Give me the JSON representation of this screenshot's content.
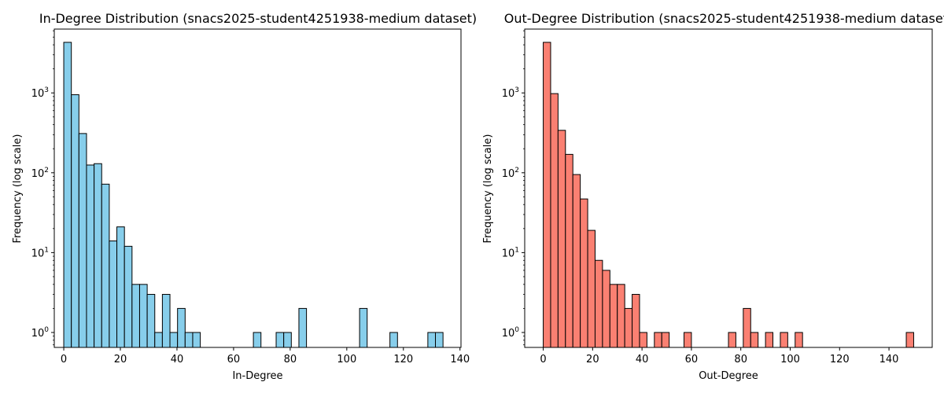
{
  "chart_data": [
    {
      "type": "bar",
      "title": "In-Degree Distribution (snacs2025-student4251938-medium dataset)",
      "xlabel": "In-Degree",
      "ylabel": "Frequency (log scale)",
      "yscale": "log",
      "xlim": [
        -3.35,
        140.35
      ],
      "ylim": [
        0.65,
        6300
      ],
      "xticks": [
        0,
        20,
        40,
        60,
        80,
        100,
        120,
        140
      ],
      "yticks": [
        1,
        10,
        100,
        1000
      ],
      "ytick_labels": [
        "10^0",
        "10^1",
        "10^2",
        "10^3"
      ],
      "bin_width": 2.68,
      "bin_start": 0,
      "color": "#87ceeb",
      "edge_color": "#000000",
      "grid": false,
      "bins": [
        {
          "x": 0.0,
          "count": 4300
        },
        {
          "x": 2.68,
          "count": 950
        },
        {
          "x": 5.36,
          "count": 310
        },
        {
          "x": 8.04,
          "count": 125
        },
        {
          "x": 10.72,
          "count": 130
        },
        {
          "x": 13.4,
          "count": 72
        },
        {
          "x": 16.08,
          "count": 14
        },
        {
          "x": 18.76,
          "count": 21
        },
        {
          "x": 21.44,
          "count": 12
        },
        {
          "x": 24.12,
          "count": 4
        },
        {
          "x": 26.8,
          "count": 4
        },
        {
          "x": 29.48,
          "count": 3
        },
        {
          "x": 32.16,
          "count": 1
        },
        {
          "x": 34.84,
          "count": 3
        },
        {
          "x": 37.52,
          "count": 1
        },
        {
          "x": 40.2,
          "count": 2
        },
        {
          "x": 42.88,
          "count": 1
        },
        {
          "x": 45.56,
          "count": 1
        },
        {
          "x": 67.0,
          "count": 1
        },
        {
          "x": 75.04,
          "count": 1
        },
        {
          "x": 77.72,
          "count": 1
        },
        {
          "x": 83.08,
          "count": 2
        },
        {
          "x": 104.52,
          "count": 2
        },
        {
          "x": 115.24,
          "count": 1
        },
        {
          "x": 128.64,
          "count": 1
        },
        {
          "x": 131.32,
          "count": 1
        }
      ]
    },
    {
      "type": "bar",
      "title": "Out-Degree Distribution (snacs2025-student4251938-medium dataset)",
      "xlabel": "Out-Degree",
      "ylabel": "Frequency (log scale)",
      "yscale": "log",
      "xlim": [
        -7.5,
        157.5
      ],
      "ylim": [
        0.65,
        6300
      ],
      "xticks": [
        0,
        20,
        40,
        60,
        80,
        100,
        120,
        140
      ],
      "yticks": [
        1,
        10,
        100,
        1000
      ],
      "ytick_labels": [
        "10^0",
        "10^1",
        "10^2",
        "10^3"
      ],
      "bin_width": 3.0,
      "bin_start": 0,
      "color": "#fa8072",
      "edge_color": "#000000",
      "grid": false,
      "bins": [
        {
          "x": 0,
          "count": 4300
        },
        {
          "x": 3,
          "count": 980
        },
        {
          "x": 6,
          "count": 340
        },
        {
          "x": 9,
          "count": 170
        },
        {
          "x": 12,
          "count": 95
        },
        {
          "x": 15,
          "count": 47
        },
        {
          "x": 18,
          "count": 19
        },
        {
          "x": 21,
          "count": 8
        },
        {
          "x": 24,
          "count": 6
        },
        {
          "x": 27,
          "count": 4
        },
        {
          "x": 30,
          "count": 4
        },
        {
          "x": 33,
          "count": 2
        },
        {
          "x": 36,
          "count": 3
        },
        {
          "x": 39,
          "count": 1
        },
        {
          "x": 45,
          "count": 1
        },
        {
          "x": 48,
          "count": 1
        },
        {
          "x": 57,
          "count": 1
        },
        {
          "x": 75,
          "count": 1
        },
        {
          "x": 81,
          "count": 2
        },
        {
          "x": 84,
          "count": 1
        },
        {
          "x": 90,
          "count": 1
        },
        {
          "x": 96,
          "count": 1
        },
        {
          "x": 102,
          "count": 1
        },
        {
          "x": 147,
          "count": 1
        }
      ]
    }
  ]
}
